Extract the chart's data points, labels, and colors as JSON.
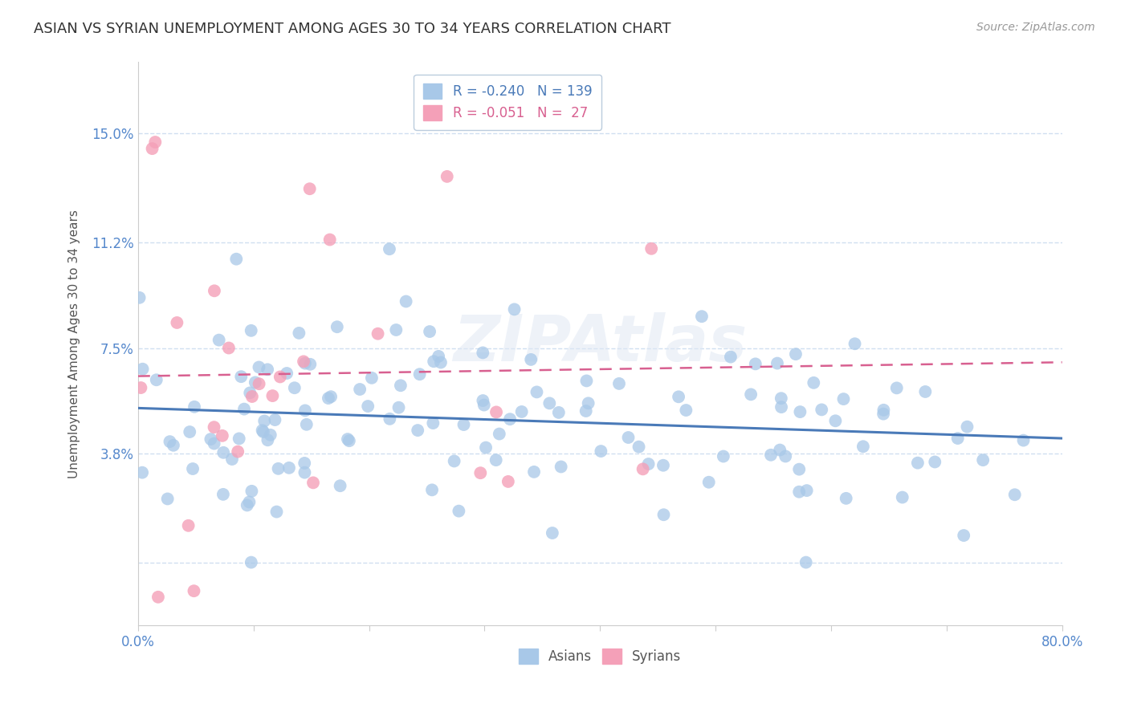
{
  "title": "ASIAN VS SYRIAN UNEMPLOYMENT AMONG AGES 30 TO 34 YEARS CORRELATION CHART",
  "source": "Source: ZipAtlas.com",
  "ylabel": "Unemployment Among Ages 30 to 34 years",
  "xlim": [
    0.0,
    0.8
  ],
  "ylim": [
    -0.022,
    0.175
  ],
  "yticks": [
    0.0,
    0.038,
    0.075,
    0.112,
    0.15
  ],
  "ytick_labels": [
    "",
    "3.8%",
    "7.5%",
    "11.2%",
    "15.0%"
  ],
  "xtick_labels": [
    "0.0%",
    "",
    "",
    "",
    "",
    "",
    "",
    "",
    "80.0%"
  ],
  "legend_asian_R": "-0.240",
  "legend_asian_N": "139",
  "legend_syrian_R": "-0.051",
  "legend_syrian_N": "27",
  "asian_color": "#a8c8e8",
  "syrian_color": "#f4a0b8",
  "trend_asian_color": "#4a7ab8",
  "trend_syrian_color": "#d86090",
  "background_color": "#ffffff",
  "grid_color": "#d0dff0",
  "watermark": "ZIPAtlas",
  "title_fontsize": 13,
  "label_fontsize": 11,
  "tick_label_color": "#5588cc",
  "source_color": "#999999",
  "title_color": "#333333"
}
